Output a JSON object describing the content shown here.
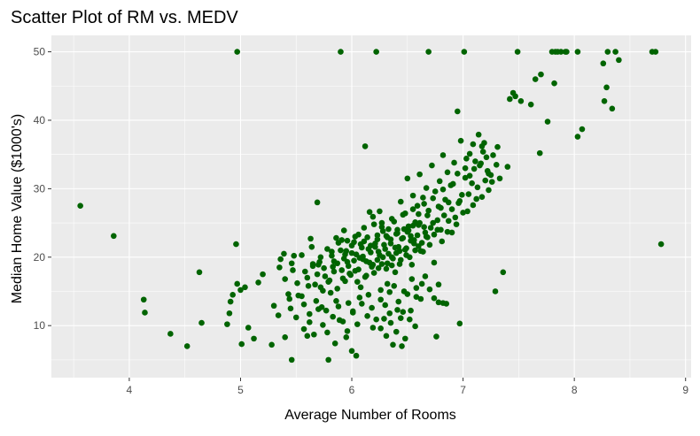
{
  "colors": {
    "panel_background": "#EBEBEB",
    "grid_major": "#FFFFFF",
    "point": "#006400",
    "tick_text": "#4D4D4D"
  },
  "chart_data": {
    "type": "scatter",
    "title": "Scatter Plot of RM vs. MEDV",
    "xlabel": "Average Number of Rooms",
    "ylabel": "Median Home Value ($1000's)",
    "xlim": [
      3.3,
      9.05
    ],
    "ylim": [
      2.4,
      52.4
    ],
    "x_ticks": [
      4,
      5,
      6,
      7,
      8,
      9
    ],
    "y_ticks": [
      10,
      20,
      30,
      40,
      50
    ],
    "grid": true,
    "legend": "none",
    "points": [
      [
        3.56,
        27.5
      ],
      [
        3.86,
        23.1
      ],
      [
        4.13,
        13.8
      ],
      [
        4.14,
        11.9
      ],
      [
        4.37,
        8.8
      ],
      [
        4.52,
        7.0
      ],
      [
        4.63,
        17.8
      ],
      [
        4.65,
        10.4
      ],
      [
        4.88,
        10.2
      ],
      [
        4.9,
        11.8
      ],
      [
        4.91,
        13.5
      ],
      [
        4.93,
        14.5
      ],
      [
        4.96,
        21.9
      ],
      [
        4.97,
        50.0
      ],
      [
        4.97,
        16.1
      ],
      [
        5.0,
        15.2
      ],
      [
        5.01,
        7.3
      ],
      [
        5.04,
        15.6
      ],
      [
        5.07,
        9.7
      ],
      [
        5.12,
        8.1
      ],
      [
        5.16,
        16.3
      ],
      [
        5.2,
        17.5
      ],
      [
        5.28,
        7.2
      ],
      [
        5.3,
        12.9
      ],
      [
        5.34,
        11.5
      ],
      [
        5.36,
        19.7
      ],
      [
        5.39,
        20.5
      ],
      [
        5.4,
        8.3
      ],
      [
        5.44,
        13.9
      ],
      [
        5.45,
        12.5
      ],
      [
        5.46,
        5.0
      ],
      [
        5.46,
        19.1
      ],
      [
        5.48,
        20.2
      ],
      [
        5.52,
        14.4
      ],
      [
        5.55,
        14.3
      ],
      [
        5.57,
        13.1
      ],
      [
        5.6,
        8.5
      ],
      [
        5.62,
        10.5
      ],
      [
        5.63,
        22.7
      ],
      [
        5.65,
        18.7
      ],
      [
        5.68,
        13.6
      ],
      [
        5.69,
        28.0
      ],
      [
        5.71,
        19.3
      ],
      [
        5.72,
        15.6
      ],
      [
        5.73,
        12.7
      ],
      [
        5.76,
        17.2
      ],
      [
        5.77,
        12.2
      ],
      [
        5.79,
        5.0
      ],
      [
        5.8,
        16.6
      ],
      [
        5.82,
        20.8
      ],
      [
        5.84,
        19.4
      ],
      [
        5.85,
        7.4
      ],
      [
        5.86,
        13.6
      ],
      [
        5.87,
        15.4
      ],
      [
        5.89,
        10.8
      ],
      [
        5.9,
        50.0
      ],
      [
        5.91,
        18.1
      ],
      [
        5.93,
        23.9
      ],
      [
        5.94,
        16.5
      ],
      [
        5.95,
        8.3
      ],
      [
        5.96,
        22.4
      ],
      [
        5.97,
        13.3
      ],
      [
        5.98,
        17.6
      ],
      [
        6.0,
        6.3
      ],
      [
        6.0,
        20.6
      ],
      [
        6.01,
        11.9
      ],
      [
        6.02,
        22.2
      ],
      [
        6.03,
        23.0
      ],
      [
        6.04,
        5.6
      ],
      [
        6.05,
        16.4
      ],
      [
        6.06,
        23.3
      ],
      [
        6.07,
        14.1
      ],
      [
        6.08,
        15.6
      ],
      [
        6.09,
        21.4
      ],
      [
        6.1,
        19.7
      ],
      [
        6.11,
        24.3
      ],
      [
        6.12,
        36.2
      ],
      [
        6.13,
        17.3
      ],
      [
        6.14,
        22.9
      ],
      [
        6.15,
        14.5
      ],
      [
        6.16,
        26.6
      ],
      [
        6.17,
        21.7
      ],
      [
        6.18,
        18.6
      ],
      [
        6.19,
        9.7
      ],
      [
        6.2,
        24.8
      ],
      [
        6.21,
        22.0
      ],
      [
        6.22,
        50.0
      ],
      [
        6.23,
        19.6
      ],
      [
        6.24,
        20.8
      ],
      [
        6.25,
        26.7
      ],
      [
        6.26,
        13.8
      ],
      [
        6.27,
        25.0
      ],
      [
        6.28,
        23.8
      ],
      [
        6.29,
        11.0
      ],
      [
        6.3,
        21.2
      ],
      [
        6.31,
        18.3
      ],
      [
        6.32,
        16.1
      ],
      [
        6.33,
        24.1
      ],
      [
        6.34,
        14.9
      ],
      [
        6.35,
        22.6
      ],
      [
        6.36,
        20.0
      ],
      [
        6.37,
        7.2
      ],
      [
        6.38,
        25.2
      ],
      [
        6.39,
        17.8
      ],
      [
        6.4,
        23.4
      ],
      [
        6.41,
        12.3
      ],
      [
        6.42,
        21.5
      ],
      [
        6.43,
        19.0
      ],
      [
        6.44,
        28.1
      ],
      [
        6.45,
        7.0
      ],
      [
        6.46,
        22.8
      ],
      [
        6.47,
        15.0
      ],
      [
        6.48,
        26.4
      ],
      [
        6.49,
        20.3
      ],
      [
        6.5,
        31.5
      ],
      [
        6.51,
        24.5
      ],
      [
        6.52,
        10.9
      ],
      [
        6.53,
        23.1
      ],
      [
        6.54,
        18.9
      ],
      [
        6.55,
        29.0
      ],
      [
        6.56,
        22.0
      ],
      [
        6.57,
        25.1
      ],
      [
        6.58,
        14.2
      ],
      [
        6.59,
        27.5
      ],
      [
        6.6,
        24.7
      ],
      [
        6.61,
        32.1
      ],
      [
        6.62,
        20.9
      ],
      [
        6.63,
        16.1
      ],
      [
        6.64,
        28.7
      ],
      [
        6.66,
        23.6
      ],
      [
        6.67,
        30.1
      ],
      [
        6.68,
        26.1
      ],
      [
        6.69,
        50.0
      ],
      [
        6.7,
        21.8
      ],
      [
        6.72,
        33.4
      ],
      [
        6.73,
        25.0
      ],
      [
        6.74,
        19.2
      ],
      [
        6.75,
        29.6
      ],
      [
        6.76,
        8.4
      ],
      [
        6.77,
        24.0
      ],
      [
        6.78,
        13.4
      ],
      [
        6.79,
        31.1
      ],
      [
        6.8,
        27.2
      ],
      [
        6.81,
        22.3
      ],
      [
        6.82,
        34.9
      ],
      [
        6.84,
        28.4
      ],
      [
        6.85,
        13.2
      ],
      [
        6.86,
        32.4
      ],
      [
        6.87,
        25.3
      ],
      [
        6.89,
        30.5
      ],
      [
        6.9,
        23.6
      ],
      [
        6.92,
        33.8
      ],
      [
        6.94,
        24.8
      ],
      [
        6.95,
        41.3
      ],
      [
        6.96,
        27.9
      ],
      [
        6.97,
        10.3
      ],
      [
        6.98,
        37.0
      ],
      [
        6.99,
        29.1
      ],
      [
        7.01,
        50.0
      ],
      [
        7.02,
        31.6
      ],
      [
        7.03,
        34.4
      ],
      [
        7.04,
        26.7
      ],
      [
        7.06,
        35.1
      ],
      [
        7.08,
        30.8
      ],
      [
        7.09,
        36.5
      ],
      [
        7.1,
        32.9
      ],
      [
        7.12,
        28.5
      ],
      [
        7.14,
        37.9
      ],
      [
        7.15,
        33.4
      ],
      [
        7.17,
        36.2
      ],
      [
        7.18,
        35.4
      ],
      [
        7.2,
        31.2
      ],
      [
        7.21,
        34.6
      ],
      [
        7.23,
        29.8
      ],
      [
        7.25,
        32.0
      ],
      [
        7.27,
        34.9
      ],
      [
        7.29,
        15.0
      ],
      [
        7.31,
        36.1
      ],
      [
        7.33,
        31.5
      ],
      [
        7.36,
        17.8
      ],
      [
        7.4,
        33.2
      ],
      [
        7.42,
        43.1
      ],
      [
        7.45,
        44.0
      ],
      [
        7.47,
        43.5
      ],
      [
        7.49,
        50.0
      ],
      [
        7.52,
        42.8
      ],
      [
        7.61,
        42.3
      ],
      [
        7.65,
        46.0
      ],
      [
        7.69,
        35.2
      ],
      [
        7.7,
        46.7
      ],
      [
        7.76,
        39.8
      ],
      [
        7.8,
        50.0
      ],
      [
        7.82,
        45.4
      ],
      [
        7.83,
        50.0
      ],
      [
        7.85,
        50.0
      ],
      [
        7.88,
        50.0
      ],
      [
        7.92,
        50.0
      ],
      [
        7.93,
        50.0
      ],
      [
        8.03,
        50.0
      ],
      [
        8.03,
        37.6
      ],
      [
        8.07,
        38.7
      ],
      [
        8.26,
        48.3
      ],
      [
        8.27,
        42.8
      ],
      [
        8.29,
        44.8
      ],
      [
        8.3,
        50.0
      ],
      [
        8.34,
        41.7
      ],
      [
        8.37,
        50.0
      ],
      [
        8.4,
        48.8
      ],
      [
        8.7,
        50.0
      ],
      [
        8.73,
        50.0
      ],
      [
        8.78,
        21.9
      ],
      [
        5.87,
        19.1
      ],
      [
        5.9,
        21.0
      ],
      [
        5.93,
        19.8
      ],
      [
        5.95,
        20.9
      ],
      [
        5.97,
        18.7
      ],
      [
        6.0,
        21.7
      ],
      [
        6.02,
        19.5
      ],
      [
        6.04,
        20.4
      ],
      [
        6.06,
        18.2
      ],
      [
        6.08,
        21.9
      ],
      [
        6.1,
        20.1
      ],
      [
        6.11,
        22.3
      ],
      [
        6.13,
        19.4
      ],
      [
        6.15,
        21.2
      ],
      [
        6.17,
        20.7
      ],
      [
        6.19,
        18.9
      ],
      [
        6.21,
        21.5
      ],
      [
        6.23,
        22.6
      ],
      [
        6.25,
        20.3
      ],
      [
        6.27,
        19.0
      ],
      [
        6.29,
        21.8
      ],
      [
        6.31,
        23.1
      ],
      [
        6.33,
        20.5
      ],
      [
        6.35,
        22.0
      ],
      [
        6.37,
        19.8
      ],
      [
        6.39,
        21.4
      ],
      [
        6.41,
        23.5
      ],
      [
        6.43,
        20.9
      ],
      [
        6.45,
        22.7
      ],
      [
        6.47,
        24.1
      ],
      [
        6.49,
        21.3
      ],
      [
        6.51,
        23.9
      ],
      [
        6.53,
        22.4
      ],
      [
        6.55,
        24.6
      ],
      [
        6.57,
        21.0
      ],
      [
        6.59,
        23.2
      ],
      [
        6.61,
        25.0
      ],
      [
        6.63,
        22.1
      ],
      [
        6.65,
        24.4
      ],
      [
        6.67,
        23.0
      ],
      [
        5.82,
        20.2
      ],
      [
        5.84,
        17.9
      ],
      [
        5.88,
        22.1
      ],
      [
        5.92,
        16.9
      ],
      [
        5.96,
        19.3
      ],
      [
        5.99,
        17.4
      ],
      [
        6.03,
        18.0
      ],
      [
        6.07,
        19.9
      ],
      [
        6.12,
        17.1
      ],
      [
        6.16,
        19.2
      ],
      [
        6.2,
        17.7
      ],
      [
        6.24,
        18.4
      ],
      [
        6.28,
        20.0
      ],
      [
        6.32,
        19.1
      ],
      [
        6.36,
        18.8
      ],
      [
        6.4,
        20.6
      ],
      [
        6.44,
        19.6
      ],
      [
        6.48,
        21.1
      ],
      [
        6.52,
        20.0
      ],
      [
        6.56,
        22.5
      ],
      [
        6.6,
        21.6
      ],
      [
        6.64,
        20.8
      ],
      [
        6.68,
        22.9
      ],
      [
        6.71,
        24.3
      ],
      [
        6.74,
        23.3
      ],
      [
        6.77,
        25.4
      ],
      [
        6.8,
        24.0
      ],
      [
        6.83,
        26.1
      ],
      [
        6.86,
        23.7
      ],
      [
        6.9,
        27.0
      ],
      [
        6.93,
        25.8
      ],
      [
        6.97,
        28.2
      ],
      [
        7.0,
        26.5
      ],
      [
        7.05,
        29.2
      ],
      [
        7.09,
        27.6
      ],
      [
        7.13,
        30.2
      ],
      [
        7.17,
        28.8
      ],
      [
        7.22,
        32.6
      ],
      [
        7.26,
        31.0
      ],
      [
        7.3,
        33.5
      ],
      [
        5.55,
        20.3
      ],
      [
        5.6,
        17.0
      ],
      [
        5.64,
        21.5
      ],
      [
        5.67,
        16.0
      ],
      [
        5.7,
        18.9
      ],
      [
        5.74,
        15.1
      ],
      [
        5.78,
        21.2
      ],
      [
        5.81,
        14.8
      ],
      [
        6.26,
        15.2
      ],
      [
        6.3,
        13.0
      ],
      [
        6.34,
        11.8
      ],
      [
        6.38,
        15.8
      ],
      [
        6.42,
        13.5
      ],
      [
        6.46,
        12.0
      ],
      [
        6.5,
        14.6
      ],
      [
        6.54,
        16.8
      ],
      [
        6.58,
        15.5
      ],
      [
        6.62,
        13.9
      ],
      [
        6.66,
        17.2
      ],
      [
        6.7,
        15.3
      ],
      [
        6.74,
        14.0
      ],
      [
        6.78,
        16.0
      ],
      [
        6.82,
        13.3
      ],
      [
        5.5,
        11.2
      ],
      [
        5.57,
        9.5
      ],
      [
        5.62,
        11.7
      ],
      [
        5.66,
        8.7
      ],
      [
        5.7,
        12.4
      ],
      [
        5.74,
        10.1
      ],
      [
        5.78,
        9.0
      ],
      [
        5.83,
        11.3
      ],
      [
        5.88,
        12.8
      ],
      [
        5.92,
        10.6
      ],
      [
        5.96,
        9.2
      ],
      [
        6.01,
        12.1
      ],
      [
        6.05,
        10.2
      ],
      [
        6.09,
        13.2
      ],
      [
        6.14,
        11.4
      ],
      [
        6.18,
        12.6
      ],
      [
        6.22,
        10.9
      ],
      [
        6.26,
        9.6
      ],
      [
        6.31,
        8.5
      ],
      [
        6.35,
        10.4
      ],
      [
        6.4,
        9.1
      ],
      [
        6.44,
        11.1
      ],
      [
        6.48,
        8.1
      ],
      [
        6.53,
        12.2
      ],
      [
        6.57,
        9.9
      ],
      [
        5.35,
        18.5
      ],
      [
        5.4,
        16.8
      ],
      [
        5.43,
        14.6
      ],
      [
        5.47,
        18.1
      ],
      [
        5.51,
        16.2
      ],
      [
        5.58,
        17.9
      ],
      [
        5.61,
        15.8
      ],
      [
        5.65,
        19.0
      ],
      [
        5.69,
        17.5
      ],
      [
        5.72,
        20.0
      ],
      [
        5.75,
        18.4
      ],
      [
        5.79,
        16.4
      ],
      [
        5.83,
        18.6
      ],
      [
        5.86,
        22.8
      ],
      [
        5.91,
        22.5
      ],
      [
        5.94,
        20.4
      ],
      [
        6.19,
        25.9
      ],
      [
        6.23,
        23.2
      ],
      [
        6.27,
        24.4
      ],
      [
        6.32,
        22.9
      ],
      [
        6.36,
        25.6
      ],
      [
        6.41,
        24.0
      ],
      [
        6.46,
        26.2
      ],
      [
        6.5,
        23.7
      ],
      [
        6.55,
        27.0
      ],
      [
        6.6,
        26.3
      ],
      [
        6.65,
        27.8
      ],
      [
        6.69,
        26.8
      ],
      [
        6.73,
        28.6
      ],
      [
        6.78,
        27.4
      ],
      [
        6.82,
        29.9
      ],
      [
        6.87,
        28.0
      ],
      [
        6.91,
        30.7
      ],
      [
        6.95,
        32.2
      ],
      [
        7.02,
        33.0
      ],
      [
        7.06,
        31.9
      ],
      [
        7.11,
        34.0
      ],
      [
        7.16,
        33.7
      ],
      [
        7.19,
        36.7
      ],
      [
        7.23,
        32.2
      ]
    ]
  }
}
